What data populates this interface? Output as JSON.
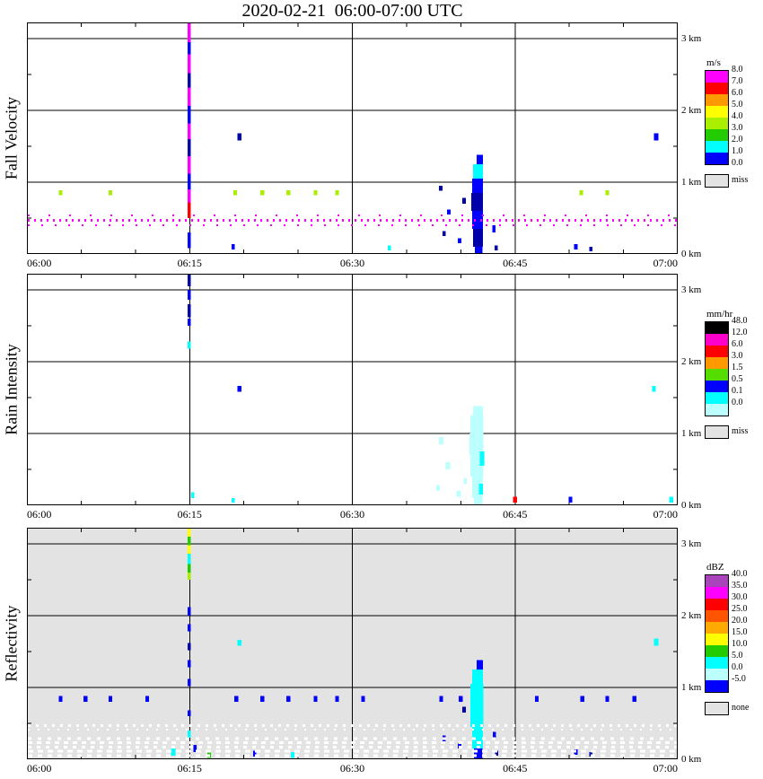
{
  "title": "2020-02-21  06:00-07:00 UTC",
  "x_tick_labels": [
    "06:00",
    "06:15",
    "06:30",
    "06:45",
    "07:00"
  ],
  "y_tick_labels": [
    "3 km",
    "2 km",
    "1 km",
    "0 km"
  ],
  "panels": [
    {
      "name": "fall-velocity",
      "ylabel": "Fall Velocity",
      "unit": "m/s",
      "bg": "#ffffff",
      "legend": {
        "title": "m/s",
        "labels": [
          "8.0",
          "7.0",
          "6.0",
          "5.0",
          "4.0",
          "3.0",
          "2.0",
          "1.0",
          "0.0"
        ],
        "colors": [
          "#ff00ff",
          "#ff0000",
          "#ff9900",
          "#ffff00",
          "#aaee00",
          "#22cc00",
          "#00ffff",
          "#0000ff"
        ],
        "missing_label": "miss",
        "missing_color": "#e3e3e3"
      }
    },
    {
      "name": "rain-intensity",
      "ylabel": "Rain Intensity",
      "unit": "mm/hr",
      "bg": "#ffffff",
      "legend": {
        "title": "mm/hr",
        "labels": [
          "48.0",
          "12.0",
          "6.0",
          "3.0",
          "1.5",
          "0.5",
          "0.1",
          "0.0"
        ],
        "colors": [
          "#000000",
          "#ff00cc",
          "#ff0000",
          "#ff9900",
          "#55dd00",
          "#0000ff",
          "#00ffff",
          "#bbffff"
        ],
        "missing_label": "miss",
        "missing_color": "#e3e3e3"
      }
    },
    {
      "name": "reflectivity",
      "ylabel": "Reflectivity",
      "unit": "dBZ",
      "bg": "#e3e3e3",
      "legend": {
        "title": "dBZ",
        "labels": [
          "40.0",
          "35.0",
          "30.0",
          "25.0",
          "20.0",
          "15.0",
          "10.0",
          "5.0",
          "0.0",
          "-5.0"
        ],
        "colors": [
          "#aa44bb",
          "#ff00ff",
          "#ff0000",
          "#ff5500",
          "#ffaa00",
          "#ffff00",
          "#22cc00",
          "#00ffff",
          "#bbffff",
          "#0000ff"
        ],
        "missing_label": "none",
        "missing_color": "#e3e3e3"
      }
    }
  ],
  "chart_data": {
    "type": "heatmap",
    "description": "Vertically pointing radar time-height quicklook, 2020-02-21 06:00-07:00 UTC. Three stacked panels (Fall Velocity m/s, Rain Intensity mm/hr, Reflectivity dBZ). Sparse echoes: a vertical streak at 06:15 reaching 3.2 km, a shallow shower cell near 06:42 below 1.4 km, scattered single-gate echoes near 0.85 km, and a clutter line near 0.45 km (magenta dots in velocity, white speckles over the gray no-data background in reflectivity).",
    "x_axis": {
      "start": "06:00",
      "end": "07:00",
      "unit": "UTC time",
      "range_min": [
        0,
        60
      ],
      "tick_interval_min": 15,
      "gridlines_min": [
        15,
        30,
        45
      ]
    },
    "y_axis": {
      "unit": "km",
      "min": 0,
      "max": 3.225,
      "ticks": [
        0,
        1,
        2,
        3
      ],
      "gridlines_km": [
        1,
        2,
        3
      ]
    },
    "echo_format": [
      "panel_index",
      "time_center_min_after_0600",
      "width_min",
      "km_bottom",
      "km_top",
      "color"
    ],
    "echoes": [
      [
        0,
        14.95,
        0.3,
        2.95,
        3.225,
        "#ff00ff"
      ],
      [
        0,
        14.95,
        0.3,
        2.78,
        2.95,
        "#0000ff"
      ],
      [
        0,
        14.95,
        0.3,
        2.52,
        2.78,
        "#ff00ff"
      ],
      [
        0,
        14.95,
        0.3,
        2.32,
        2.52,
        "#0000aa"
      ],
      [
        0,
        14.95,
        0.3,
        2.06,
        2.32,
        "#ff00ff"
      ],
      [
        0,
        14.95,
        0.3,
        1.82,
        2.06,
        "#0000ff"
      ],
      [
        0,
        14.95,
        0.3,
        1.6,
        1.82,
        "#ff00ff"
      ],
      [
        0,
        14.95,
        0.3,
        1.36,
        1.6,
        "#0000aa"
      ],
      [
        0,
        14.95,
        0.3,
        1.12,
        1.36,
        "#ff00ff"
      ],
      [
        0,
        14.95,
        0.3,
        0.9,
        1.12,
        "#0000ff"
      ],
      [
        0,
        14.95,
        0.3,
        0.72,
        0.9,
        "#ff00ff"
      ],
      [
        0,
        14.95,
        0.3,
        0.5,
        0.72,
        "#ff0000"
      ],
      [
        0,
        14.95,
        0.3,
        0.08,
        0.3,
        "#0000ff"
      ],
      [
        0,
        19.6,
        0.35,
        1.58,
        1.68,
        "#0000aa"
      ],
      [
        0,
        58.0,
        0.4,
        1.58,
        1.68,
        "#0000ff"
      ],
      [
        0,
        3.1,
        0.35,
        0.82,
        0.89,
        "#aaee00"
      ],
      [
        0,
        7.7,
        0.35,
        0.82,
        0.89,
        "#aaee00"
      ],
      [
        0,
        19.2,
        0.35,
        0.82,
        0.89,
        "#aaee00"
      ],
      [
        0,
        21.7,
        0.35,
        0.82,
        0.89,
        "#aaee00"
      ],
      [
        0,
        24.1,
        0.35,
        0.82,
        0.89,
        "#aaee00"
      ],
      [
        0,
        26.6,
        0.35,
        0.82,
        0.89,
        "#aaee00"
      ],
      [
        0,
        28.6,
        0.35,
        0.82,
        0.89,
        "#aaee00"
      ],
      [
        0,
        51.1,
        0.35,
        0.82,
        0.89,
        "#aaee00"
      ],
      [
        0,
        53.5,
        0.35,
        0.82,
        0.89,
        "#aaee00"
      ],
      [
        0,
        33.4,
        0.3,
        0.05,
        0.12,
        "#00ffff"
      ],
      [
        0,
        41.75,
        0.6,
        1.25,
        1.38,
        "#0000ff"
      ],
      [
        0,
        41.6,
        0.9,
        1.05,
        1.25,
        "#00ffff"
      ],
      [
        0,
        41.55,
        1.0,
        0.85,
        1.05,
        "#0000ff"
      ],
      [
        0,
        41.5,
        1.1,
        0.6,
        0.85,
        "#0000aa"
      ],
      [
        0,
        41.55,
        1.0,
        0.35,
        0.6,
        "#0000ff"
      ],
      [
        0,
        41.6,
        0.9,
        0.1,
        0.35,
        "#0000aa"
      ],
      [
        0,
        41.65,
        0.7,
        0.0,
        0.1,
        "#0000ff"
      ],
      [
        0,
        38.15,
        0.35,
        0.88,
        0.95,
        "#0000aa"
      ],
      [
        0,
        38.9,
        0.3,
        0.55,
        0.62,
        "#0000ff"
      ],
      [
        0,
        38.45,
        0.3,
        0.25,
        0.32,
        "#0000aa"
      ],
      [
        0,
        39.9,
        0.35,
        0.15,
        0.22,
        "#0000ff"
      ],
      [
        0,
        40.3,
        0.3,
        0.7,
        0.78,
        "#0000aa"
      ],
      [
        0,
        43.05,
        0.3,
        0.3,
        0.4,
        "#0000ff"
      ],
      [
        0,
        43.25,
        0.3,
        0.05,
        0.12,
        "#0000aa"
      ],
      [
        0,
        19.0,
        0.3,
        0.06,
        0.14,
        "#0000ff"
      ],
      [
        0,
        50.6,
        0.35,
        0.06,
        0.14,
        "#0000ff"
      ],
      [
        0,
        52.0,
        0.3,
        0.04,
        0.1,
        "#0000aa"
      ],
      [
        1,
        14.95,
        0.3,
        3.05,
        3.225,
        "#0000aa"
      ],
      [
        1,
        14.95,
        0.3,
        2.86,
        3.0,
        "#0000ff"
      ],
      [
        1,
        14.95,
        0.3,
        2.62,
        2.8,
        "#0000aa"
      ],
      [
        1,
        14.95,
        0.3,
        2.5,
        2.6,
        "#0000ff"
      ],
      [
        1,
        14.95,
        0.3,
        2.18,
        2.28,
        "#00ffff"
      ],
      [
        1,
        19.6,
        0.35,
        1.58,
        1.66,
        "#0000ff"
      ],
      [
        1,
        41.6,
        0.9,
        1.25,
        1.38,
        "#bbffff"
      ],
      [
        1,
        41.5,
        1.2,
        1.0,
        1.25,
        "#bbffff"
      ],
      [
        1,
        41.45,
        1.3,
        0.7,
        1.0,
        "#bbffff"
      ],
      [
        1,
        41.5,
        1.2,
        0.4,
        0.7,
        "#bbffff"
      ],
      [
        1,
        41.55,
        1.0,
        0.1,
        0.4,
        "#bbffff"
      ],
      [
        1,
        41.6,
        0.8,
        0.0,
        0.1,
        "#bbffff"
      ],
      [
        1,
        41.95,
        0.4,
        0.55,
        0.75,
        "#00ffff"
      ],
      [
        1,
        41.85,
        0.4,
        0.15,
        0.3,
        "#00ffff"
      ],
      [
        1,
        38.2,
        0.4,
        0.85,
        0.95,
        "#bbffff"
      ],
      [
        1,
        38.8,
        0.4,
        0.5,
        0.6,
        "#bbffff"
      ],
      [
        1,
        39.8,
        0.4,
        0.12,
        0.2,
        "#bbffff"
      ],
      [
        1,
        40.4,
        0.3,
        0.3,
        0.38,
        "#bbffff"
      ],
      [
        1,
        37.9,
        0.3,
        0.2,
        0.28,
        "#bbffff"
      ],
      [
        1,
        45.0,
        0.35,
        0.04,
        0.12,
        "#ff0000"
      ],
      [
        1,
        50.1,
        0.35,
        0.04,
        0.12,
        "#0000ff"
      ],
      [
        1,
        57.8,
        0.35,
        1.58,
        1.66,
        "#00ffff"
      ],
      [
        1,
        59.4,
        0.4,
        0.04,
        0.12,
        "#00ffff"
      ],
      [
        1,
        15.3,
        0.3,
        0.1,
        0.18,
        "#00ffff"
      ],
      [
        1,
        19.0,
        0.3,
        0.04,
        0.1,
        "#00ffff"
      ],
      [
        2,
        14.95,
        0.3,
        3.1,
        3.225,
        "#ffff00"
      ],
      [
        2,
        14.95,
        0.3,
        2.98,
        3.1,
        "#22cc00"
      ],
      [
        2,
        14.95,
        0.3,
        2.86,
        2.98,
        "#ffff00"
      ],
      [
        2,
        14.95,
        0.3,
        2.72,
        2.86,
        "#00ffff"
      ],
      [
        2,
        14.95,
        0.3,
        2.6,
        2.72,
        "#22cc00"
      ],
      [
        2,
        14.95,
        0.3,
        2.5,
        2.6,
        "#aaee00"
      ],
      [
        2,
        14.95,
        0.3,
        2.0,
        2.12,
        "#0000ff"
      ],
      [
        2,
        14.95,
        0.3,
        1.78,
        1.88,
        "#0000ff"
      ],
      [
        2,
        14.95,
        0.3,
        1.52,
        1.62,
        "#0000aa"
      ],
      [
        2,
        14.95,
        0.3,
        1.28,
        1.38,
        "#0000ff"
      ],
      [
        2,
        14.95,
        0.3,
        1.02,
        1.12,
        "#0000ff"
      ],
      [
        2,
        14.95,
        0.3,
        0.6,
        0.68,
        "#0000ff"
      ],
      [
        2,
        14.95,
        0.3,
        0.3,
        0.4,
        "#00ffff"
      ],
      [
        2,
        3.1,
        0.35,
        0.8,
        0.88,
        "#0000ff"
      ],
      [
        2,
        5.4,
        0.35,
        0.8,
        0.88,
        "#0000ff"
      ],
      [
        2,
        7.7,
        0.35,
        0.8,
        0.88,
        "#0000ff"
      ],
      [
        2,
        11.1,
        0.35,
        0.8,
        0.88,
        "#0000ff"
      ],
      [
        2,
        19.3,
        0.35,
        0.8,
        0.88,
        "#0000ff"
      ],
      [
        2,
        21.7,
        0.35,
        0.8,
        0.88,
        "#0000ff"
      ],
      [
        2,
        24.1,
        0.35,
        0.8,
        0.88,
        "#0000ff"
      ],
      [
        2,
        26.6,
        0.35,
        0.8,
        0.88,
        "#0000ff"
      ],
      [
        2,
        28.6,
        0.35,
        0.8,
        0.88,
        "#0000ff"
      ],
      [
        2,
        31.0,
        0.35,
        0.8,
        0.88,
        "#0000ff"
      ],
      [
        2,
        38.2,
        0.35,
        0.8,
        0.88,
        "#0000ff"
      ],
      [
        2,
        40.0,
        0.35,
        0.8,
        0.88,
        "#0000ff"
      ],
      [
        2,
        47.0,
        0.35,
        0.8,
        0.88,
        "#0000ff"
      ],
      [
        2,
        51.2,
        0.35,
        0.8,
        0.88,
        "#0000ff"
      ],
      [
        2,
        53.5,
        0.35,
        0.8,
        0.88,
        "#0000ff"
      ],
      [
        2,
        56.0,
        0.35,
        0.8,
        0.88,
        "#0000ff"
      ],
      [
        2,
        19.6,
        0.35,
        1.58,
        1.66,
        "#00ffff"
      ],
      [
        2,
        58.0,
        0.4,
        1.58,
        1.68,
        "#00ffff"
      ],
      [
        2,
        41.75,
        0.6,
        1.25,
        1.38,
        "#0000ff"
      ],
      [
        2,
        41.55,
        1.0,
        1.05,
        1.25,
        "#00ffff"
      ],
      [
        2,
        41.5,
        1.2,
        0.75,
        1.05,
        "#00ffff"
      ],
      [
        2,
        41.5,
        1.2,
        0.45,
        0.75,
        "#00ffff"
      ],
      [
        2,
        41.55,
        1.0,
        0.15,
        0.45,
        "#00ffff"
      ],
      [
        2,
        41.6,
        0.8,
        0.0,
        0.15,
        "#0000ff"
      ],
      [
        2,
        38.45,
        0.3,
        0.25,
        0.33,
        "#0000ff"
      ],
      [
        2,
        39.9,
        0.35,
        0.15,
        0.22,
        "#0000ff"
      ],
      [
        2,
        40.3,
        0.3,
        0.65,
        0.73,
        "#0000aa"
      ],
      [
        2,
        43.1,
        0.3,
        0.3,
        0.38,
        "#0000ff"
      ],
      [
        2,
        43.3,
        0.3,
        0.05,
        0.12,
        "#0000aa"
      ],
      [
        2,
        13.5,
        0.4,
        0.05,
        0.15,
        "#00ffff"
      ],
      [
        2,
        15.5,
        0.3,
        0.1,
        0.2,
        "#0000ff"
      ],
      [
        2,
        16.8,
        0.3,
        0.02,
        0.1,
        "#22cc00"
      ],
      [
        2,
        21.0,
        0.3,
        0.04,
        0.12,
        "#0000ff"
      ],
      [
        2,
        24.5,
        0.3,
        0.02,
        0.1,
        "#00ffff"
      ],
      [
        2,
        50.6,
        0.35,
        0.06,
        0.14,
        "#0000ff"
      ],
      [
        2,
        52.0,
        0.3,
        0.04,
        0.1,
        "#0000aa"
      ]
    ],
    "dashed_rows": [
      {
        "panel": 0,
        "km": 0.47,
        "color": "#ff00ff",
        "dash": "2,5",
        "h": 3
      },
      {
        "panel": 0,
        "km": 0.4,
        "color": "#ff00ff",
        "dash": "2,13",
        "h": 2
      },
      {
        "panel": 0,
        "km": 0.54,
        "color": "#ff00ff",
        "dash": "2,21",
        "h": 2
      },
      {
        "panel": 2,
        "km": 0.47,
        "color": "#ffffff",
        "dash": "3,6",
        "h": 3
      },
      {
        "panel": 2,
        "km": 0.41,
        "color": "#ffffff",
        "dash": "2,9",
        "h": 2
      },
      {
        "panel": 2,
        "km": 0.29,
        "color": "#ffffff",
        "dash": "4,7",
        "h": 3
      },
      {
        "panel": 2,
        "km": 0.23,
        "color": "#ffffff",
        "dash": "5,5",
        "h": 3
      },
      {
        "panel": 2,
        "km": 0.17,
        "color": "#ffffff",
        "dash": "4,6",
        "h": 3
      },
      {
        "panel": 2,
        "km": 0.11,
        "color": "#ffffff",
        "dash": "6,5",
        "h": 3
      },
      {
        "panel": 2,
        "km": 0.05,
        "color": "#ffffff",
        "dash": "5,6",
        "h": 3
      }
    ]
  }
}
